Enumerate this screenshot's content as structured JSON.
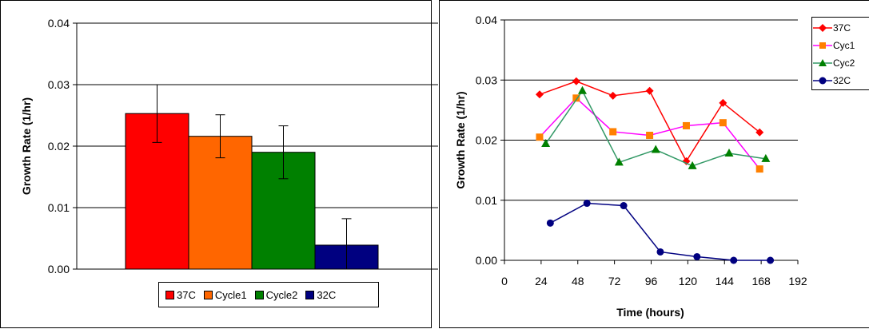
{
  "chart_data": [
    {
      "type": "bar",
      "ylabel": "Growth Rate (1/hr)",
      "ylim": [
        0,
        0.04
      ],
      "yticks": [
        "0.00",
        "0.01",
        "0.02",
        "0.03",
        "0.04"
      ],
      "categories": [
        "37C",
        "Cycle1",
        "Cycle2",
        "32C"
      ],
      "values": [
        0.0253,
        0.0216,
        0.019,
        0.0039
      ],
      "errors": [
        0.0047,
        0.0035,
        0.0043,
        0.0043
      ],
      "colors": [
        "#ff0000",
        "#ff6600",
        "#008000",
        "#000080"
      ],
      "grid": true,
      "legend_position": "bottom"
    },
    {
      "type": "line",
      "xlabel": "Time (hours)",
      "ylabel": "Growth Rate (1/hr)",
      "xlim": [
        0,
        192
      ],
      "ylim": [
        0,
        0.04
      ],
      "xticks": [
        "0",
        "24",
        "48",
        "72",
        "96",
        "120",
        "144",
        "168",
        "192"
      ],
      "yticks": [
        "0.00",
        "0.01",
        "0.02",
        "0.03",
        "0.04"
      ],
      "grid": true,
      "legend_position": "top-right",
      "series": [
        {
          "name": "37C",
          "color": "#ff0000",
          "marker": "diamond",
          "x": [
            23,
            47,
            71,
            95,
            119,
            143,
            167
          ],
          "y": [
            0.0276,
            0.0298,
            0.0274,
            0.0282,
            0.0165,
            0.0262,
            0.0213
          ]
        },
        {
          "name": "Cyc1",
          "color": "#ff00ff",
          "marker_color": "#ff8000",
          "marker": "square",
          "x": [
            23,
            47,
            71,
            95,
            119,
            143,
            167
          ],
          "y": [
            0.0205,
            0.027,
            0.0214,
            0.0208,
            0.0224,
            0.0229,
            0.0152
          ]
        },
        {
          "name": "Cyc2",
          "color": "#339966",
          "marker_color": "#008000",
          "marker": "triangle",
          "x": [
            27,
            51,
            75,
            99,
            123,
            147,
            171
          ],
          "y": [
            0.0194,
            0.0282,
            0.0163,
            0.0184,
            0.0157,
            0.0178,
            0.0169
          ]
        },
        {
          "name": "32C",
          "color": "#000080",
          "marker": "circle",
          "x": [
            30,
            54,
            78,
            102,
            126,
            150,
            174
          ],
          "y": [
            0.0062,
            0.0095,
            0.0091,
            0.0014,
            0.0006,
            0.0,
            0.0
          ]
        }
      ]
    }
  ]
}
